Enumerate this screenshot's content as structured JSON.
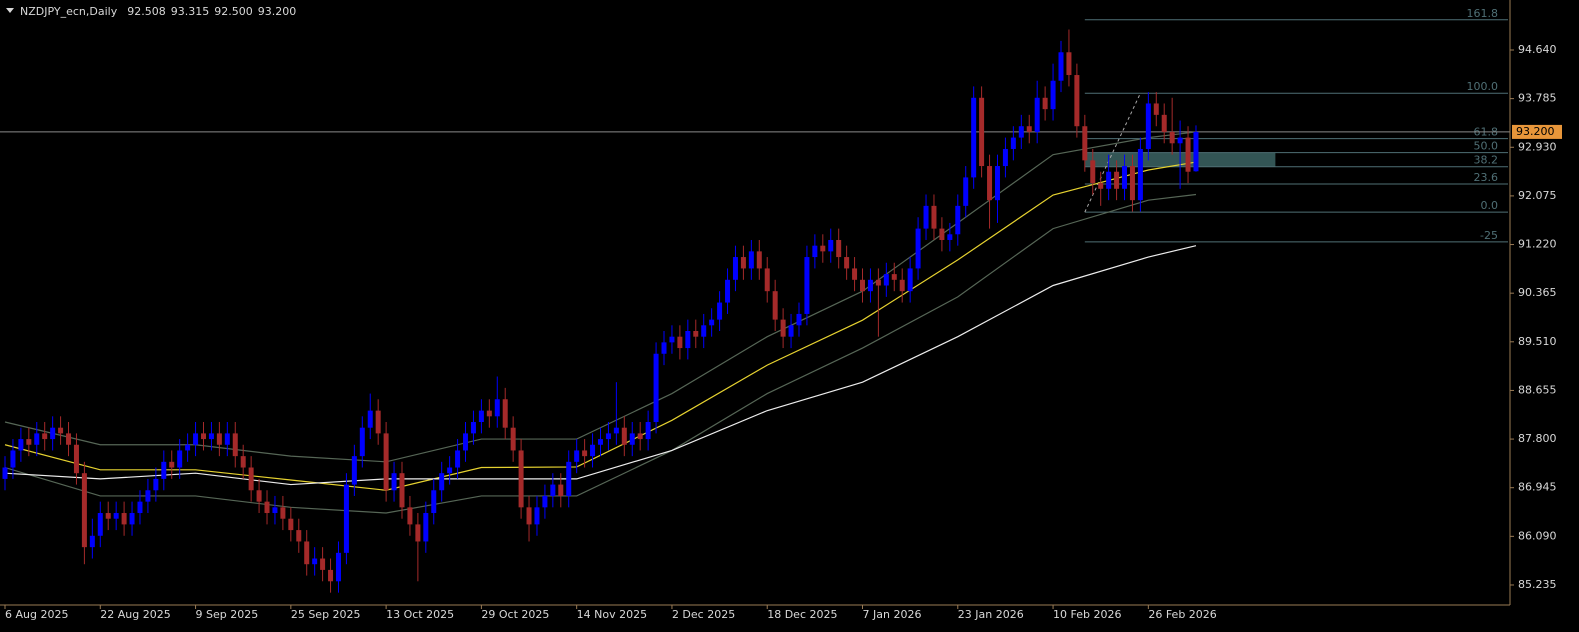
{
  "chart_data": {
    "type": "candlestick",
    "title": "NZDJPY_ecn,Daily",
    "ohlc": [
      92.508,
      93.315,
      {
        "value": 92.5,
        "label": "92.500"
      },
      {
        "value": 93.2,
        "label": "93.200"
      }
    ],
    "up_color": "#0000ff",
    "down_color": "#a52a2a",
    "xlim": [
      -0.63,
      189.55
    ],
    "ylim": [
      84.883,
      95.519
    ],
    "xticks": [
      {
        "value": 0,
        "label": "6 Aug 2025"
      },
      {
        "value": 12,
        "label": "22 Aug 2025"
      },
      {
        "value": 24,
        "label": "9 Sep 2025"
      },
      {
        "value": 36,
        "label": "25 Sep 2025"
      },
      {
        "value": 48,
        "label": "13 Oct 2025"
      },
      {
        "value": 60,
        "label": "29 Oct 2025"
      },
      {
        "value": 72,
        "label": "14 Nov 2025"
      },
      {
        "value": 84,
        "label": "2 Dec 2025"
      },
      {
        "value": 96,
        "label": "18 Dec 2025"
      },
      {
        "value": 108,
        "label": "7 Jan 2026"
      },
      {
        "value": 120,
        "label": "23 Jan 2026"
      },
      {
        "value": 132,
        "label": "10 Feb 2026"
      },
      {
        "value": 144,
        "label": "26 Feb 2026"
      }
    ],
    "yticks": [
      {
        "value": 94.64,
        "label": "94.640"
      },
      {
        "value": 93.785,
        "label": "93.785"
      },
      {
        "value": 92.93,
        "label": "92.930"
      },
      {
        "value": 92.075,
        "label": "92.075"
      },
      {
        "value": 91.22,
        "label": "91.220"
      },
      {
        "value": 90.365,
        "label": "90.365"
      },
      {
        "value": 89.51,
        "label": "89.510"
      },
      {
        "value": 88.655,
        "label": "88.655"
      },
      {
        "value": 87.8,
        "label": "87.800"
      },
      {
        "value": 86.945,
        "label": "86.945"
      },
      {
        "value": 86.09,
        "label": "86.090"
      },
      {
        "value": 85.235,
        "label": "85.235"
      }
    ],
    "candles": [
      [
        87.1,
        87.5,
        86.9,
        87.3
      ],
      [
        87.3,
        87.8,
        87.1,
        87.6
      ],
      [
        87.6,
        88.0,
        87.4,
        87.8
      ],
      [
        87.8,
        88.0,
        87.5,
        87.7
      ],
      [
        87.7,
        88.1,
        87.5,
        87.9
      ],
      [
        87.9,
        88.1,
        87.6,
        87.8
      ],
      [
        87.8,
        88.2,
        87.6,
        88.0
      ],
      [
        88.0,
        88.2,
        87.7,
        87.9
      ],
      [
        87.9,
        88.1,
        87.5,
        87.7
      ],
      [
        87.7,
        87.9,
        87.0,
        87.2
      ],
      [
        87.2,
        87.4,
        85.6,
        85.9
      ],
      [
        85.9,
        86.4,
        85.7,
        86.1
      ],
      [
        86.1,
        86.7,
        85.9,
        86.5
      ],
      [
        86.5,
        86.7,
        86.2,
        86.4
      ],
      [
        86.4,
        86.7,
        86.2,
        86.5
      ],
      [
        86.5,
        86.7,
        86.1,
        86.3
      ],
      [
        86.3,
        86.7,
        86.1,
        86.5
      ],
      [
        86.5,
        86.9,
        86.3,
        86.7
      ],
      [
        86.7,
        87.1,
        86.5,
        86.9
      ],
      [
        86.9,
        87.3,
        86.7,
        87.1
      ],
      [
        87.1,
        87.6,
        86.9,
        87.4
      ],
      [
        87.4,
        87.6,
        87.1,
        87.3
      ],
      [
        87.3,
        87.8,
        87.1,
        87.6
      ],
      [
        87.6,
        87.9,
        87.4,
        87.7
      ],
      [
        87.7,
        88.1,
        87.5,
        87.9
      ],
      [
        87.9,
        88.1,
        87.6,
        87.8
      ],
      [
        87.8,
        88.1,
        87.6,
        87.9
      ],
      [
        87.9,
        88.1,
        87.5,
        87.7
      ],
      [
        87.7,
        88.1,
        87.5,
        87.9
      ],
      [
        87.9,
        88.1,
        87.3,
        87.5
      ],
      [
        87.5,
        87.7,
        87.1,
        87.3
      ],
      [
        87.3,
        87.5,
        86.7,
        86.9
      ],
      [
        86.9,
        87.1,
        86.5,
        86.7
      ],
      [
        86.7,
        86.9,
        86.3,
        86.5
      ],
      [
        86.5,
        86.8,
        86.3,
        86.6
      ],
      [
        86.6,
        86.8,
        86.2,
        86.4
      ],
      [
        86.4,
        86.6,
        86.0,
        86.2
      ],
      [
        86.2,
        86.4,
        85.8,
        86.0
      ],
      [
        86.0,
        86.2,
        85.4,
        85.6
      ],
      [
        85.6,
        85.9,
        85.4,
        85.7
      ],
      [
        85.7,
        85.9,
        85.3,
        85.5
      ],
      [
        85.5,
        85.7,
        85.1,
        85.3
      ],
      [
        85.3,
        86.0,
        85.1,
        85.8
      ],
      [
        85.8,
        87.2,
        85.6,
        87.0
      ],
      [
        87.0,
        87.7,
        86.8,
        87.5
      ],
      [
        87.5,
        88.2,
        87.3,
        88.0
      ],
      [
        88.0,
        88.6,
        87.8,
        88.3
      ],
      [
        88.3,
        88.5,
        87.7,
        87.9
      ],
      [
        87.9,
        88.1,
        86.7,
        86.9
      ],
      [
        86.9,
        87.4,
        86.7,
        87.2
      ],
      [
        87.2,
        87.4,
        86.4,
        86.6
      ],
      [
        86.6,
        86.8,
        86.1,
        86.3
      ],
      [
        86.3,
        86.5,
        85.3,
        86.0
      ],
      [
        86.0,
        86.7,
        85.8,
        86.5
      ],
      [
        86.5,
        87.1,
        86.3,
        86.9
      ],
      [
        86.9,
        87.4,
        86.7,
        87.2
      ],
      [
        87.2,
        87.5,
        87.0,
        87.3
      ],
      [
        87.3,
        87.8,
        87.1,
        87.6
      ],
      [
        87.6,
        88.1,
        87.4,
        87.9
      ],
      [
        87.9,
        88.3,
        87.7,
        88.1
      ],
      [
        88.1,
        88.5,
        87.9,
        88.3
      ],
      [
        88.3,
        88.5,
        88.0,
        88.2
      ],
      [
        88.2,
        88.9,
        88.0,
        88.5
      ],
      [
        88.5,
        88.7,
        87.8,
        88.0
      ],
      [
        88.0,
        88.2,
        87.4,
        87.6
      ],
      [
        87.6,
        87.8,
        86.4,
        86.6
      ],
      [
        86.6,
        86.8,
        86.0,
        86.3
      ],
      [
        86.3,
        86.8,
        86.1,
        86.6
      ],
      [
        86.6,
        87.0,
        86.4,
        86.8
      ],
      [
        86.8,
        87.2,
        86.6,
        87.0
      ],
      [
        87.0,
        87.2,
        86.6,
        86.8
      ],
      [
        86.8,
        87.6,
        86.6,
        87.4
      ],
      [
        87.4,
        87.8,
        87.2,
        87.6
      ],
      [
        87.6,
        87.8,
        87.3,
        87.5
      ],
      [
        87.5,
        87.9,
        87.3,
        87.7
      ],
      [
        87.7,
        88.0,
        87.5,
        87.8
      ],
      [
        87.8,
        88.1,
        87.6,
        87.9
      ],
      [
        87.9,
        88.8,
        87.7,
        88.0
      ],
      [
        88.0,
        88.2,
        87.5,
        87.7
      ],
      [
        87.7,
        88.1,
        87.5,
        87.9
      ],
      [
        87.9,
        88.1,
        87.6,
        87.8
      ],
      [
        87.8,
        88.3,
        87.6,
        88.1
      ],
      [
        88.1,
        89.5,
        87.9,
        89.3
      ],
      [
        89.3,
        89.7,
        89.1,
        89.5
      ],
      [
        89.5,
        89.8,
        89.3,
        89.6
      ],
      [
        89.6,
        89.8,
        89.2,
        89.4
      ],
      [
        89.4,
        89.9,
        89.2,
        89.7
      ],
      [
        89.7,
        89.9,
        89.4,
        89.6
      ],
      [
        89.6,
        90.0,
        89.4,
        89.8
      ],
      [
        89.8,
        90.1,
        89.6,
        89.9
      ],
      [
        89.9,
        90.4,
        89.7,
        90.2
      ],
      [
        90.2,
        90.8,
        90.0,
        90.6
      ],
      [
        90.6,
        91.2,
        90.4,
        91.0
      ],
      [
        91.0,
        91.2,
        90.6,
        90.8
      ],
      [
        90.8,
        91.3,
        90.6,
        91.1
      ],
      [
        91.1,
        91.3,
        90.6,
        90.8
      ],
      [
        90.8,
        91.0,
        90.2,
        90.4
      ],
      [
        90.4,
        90.6,
        89.7,
        89.9
      ],
      [
        89.9,
        90.1,
        89.4,
        89.6
      ],
      [
        89.6,
        90.0,
        89.4,
        89.8
      ],
      [
        89.8,
        90.2,
        89.6,
        90.0
      ],
      [
        90.0,
        91.2,
        89.8,
        91.0
      ],
      [
        91.0,
        91.4,
        90.8,
        91.2
      ],
      [
        91.2,
        91.4,
        90.9,
        91.1
      ],
      [
        91.1,
        91.5,
        90.9,
        91.3
      ],
      [
        91.3,
        91.5,
        90.8,
        91.0
      ],
      [
        91.0,
        91.2,
        90.6,
        90.8
      ],
      [
        90.8,
        91.0,
        90.4,
        90.6
      ],
      [
        90.6,
        90.8,
        90.2,
        90.4
      ],
      [
        90.4,
        90.8,
        90.2,
        90.6
      ],
      [
        90.6,
        90.8,
        89.6,
        90.5
      ],
      [
        90.5,
        90.9,
        90.3,
        90.7
      ],
      [
        90.7,
        90.9,
        90.4,
        90.6
      ],
      [
        90.6,
        90.8,
        90.2,
        90.4
      ],
      [
        90.4,
        91.0,
        90.2,
        90.8
      ],
      [
        90.8,
        91.7,
        90.6,
        91.5
      ],
      [
        91.5,
        92.1,
        91.3,
        91.9
      ],
      [
        91.9,
        92.1,
        91.3,
        91.5
      ],
      [
        91.5,
        91.7,
        91.1,
        91.3
      ],
      [
        91.3,
        91.6,
        91.1,
        91.4
      ],
      [
        91.4,
        92.1,
        91.2,
        91.9
      ],
      [
        91.9,
        92.6,
        91.7,
        92.4
      ],
      [
        92.4,
        94.0,
        92.2,
        93.8
      ],
      [
        93.8,
        94.0,
        92.4,
        92.6
      ],
      [
        92.6,
        92.8,
        91.5,
        92.0
      ],
      [
        92.0,
        92.8,
        91.6,
        92.6
      ],
      [
        92.6,
        93.1,
        92.4,
        92.9
      ],
      [
        92.9,
        93.3,
        92.7,
        93.1
      ],
      [
        93.1,
        93.5,
        92.9,
        93.3
      ],
      [
        93.3,
        93.5,
        93.0,
        93.2
      ],
      [
        93.2,
        94.1,
        93.0,
        93.8
      ],
      [
        93.8,
        94.0,
        93.4,
        93.6
      ],
      [
        93.6,
        94.4,
        93.4,
        94.1
      ],
      [
        94.1,
        94.8,
        93.9,
        94.6
      ],
      [
        94.6,
        95.0,
        94.0,
        94.2
      ],
      [
        94.2,
        94.4,
        93.1,
        93.3
      ],
      [
        93.3,
        93.5,
        92.5,
        92.7
      ],
      [
        92.7,
        92.9,
        92.1,
        92.3
      ],
      [
        92.3,
        92.5,
        91.9,
        92.2
      ],
      [
        92.2,
        92.8,
        92.0,
        92.5
      ],
      [
        92.5,
        92.7,
        92.0,
        92.2
      ],
      [
        92.2,
        92.8,
        92.0,
        92.6
      ],
      [
        92.6,
        92.8,
        91.8,
        92.0
      ],
      [
        92.0,
        93.1,
        91.8,
        92.9
      ],
      [
        92.9,
        93.9,
        92.7,
        93.7
      ],
      [
        93.7,
        93.9,
        93.3,
        93.5
      ],
      [
        93.5,
        93.7,
        93.0,
        93.2
      ],
      [
        93.2,
        93.8,
        92.8,
        93.0
      ],
      [
        93.0,
        93.4,
        92.2,
        93.1
      ],
      [
        93.1,
        93.3,
        92.3,
        92.5
      ],
      [
        92.508,
        93.315,
        92.5,
        93.2
      ]
    ],
    "series_x": [
      0,
      12,
      24,
      36,
      48,
      60,
      72,
      84,
      96,
      108,
      120,
      132,
      144,
      150
    ],
    "series": [
      {
        "color": "#566656",
        "values": [
          88.1,
          87.7,
          87.7,
          87.5,
          87.4,
          87.8,
          87.8,
          88.6,
          89.6,
          90.4,
          91.6,
          92.8,
          93.1,
          93.2
        ]
      },
      {
        "color": "#566656",
        "values": [
          87.3,
          86.8,
          86.8,
          86.6,
          86.5,
          86.8,
          86.8,
          87.6,
          88.6,
          89.4,
          90.3,
          91.5,
          92.0,
          92.1
        ]
      },
      {
        "color": "#e6d230",
        "values": [
          87.7,
          87.26,
          87.26,
          87.08,
          86.9,
          87.3,
          87.31,
          88.13,
          89.1,
          89.89,
          90.95,
          92.09,
          92.53,
          92.67
        ]
      },
      {
        "color": "#ececec",
        "values": [
          87.2,
          87.1,
          87.2,
          87.0,
          87.1,
          87.1,
          87.1,
          87.6,
          88.3,
          88.8,
          89.6,
          90.5,
          91.0,
          91.2
        ]
      }
    ],
    "fib": {
      "low": 91.79,
      "high": 93.88,
      "color": "#4f6f75",
      "zone_color": "#3c6464",
      "levels": [
        161.8,
        {
          "value": 100,
          "label": "100.0"
        },
        61.8,
        {
          "value": 50,
          "label": "50.0"
        },
        38.2,
        23.6,
        {
          "value": 0,
          "label": "0.0"
        },
        -25
      ]
    },
    "current_price": {
      "value": 93.2,
      "label": "93.200"
    },
    "current_price_color": "#e8963a"
  }
}
